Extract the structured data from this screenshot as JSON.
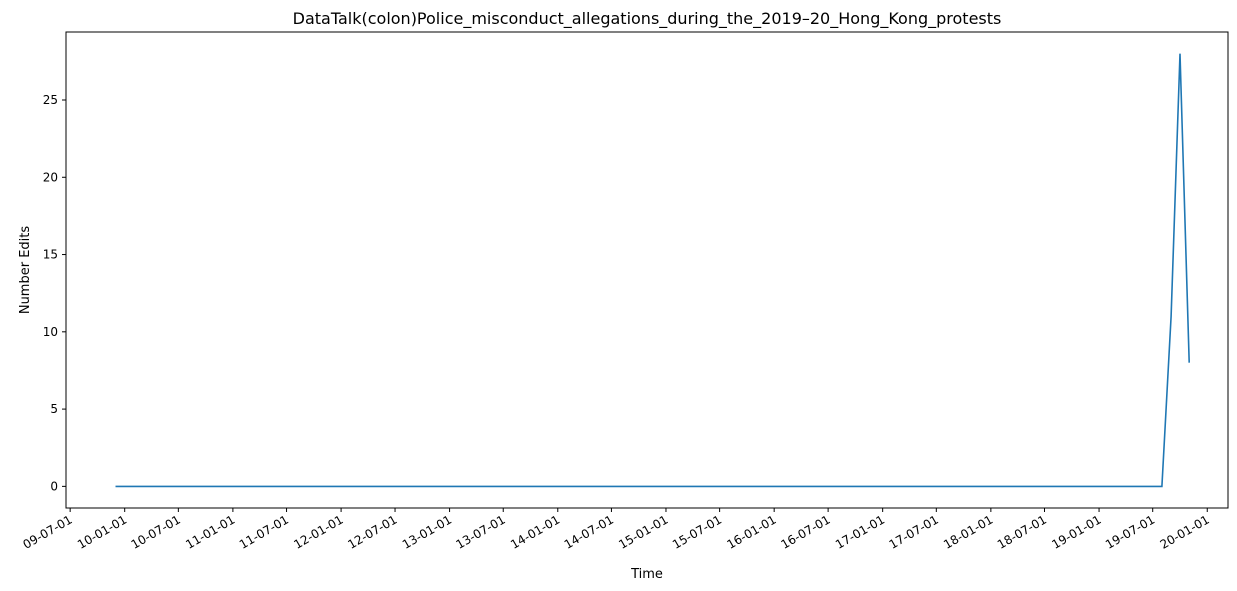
{
  "chart_data": {
    "type": "line",
    "title": "DataTalk(colon)Police_misconduct_allegations_during_the_2019–20_Hong_Kong_protests",
    "xlabel": "Time",
    "ylabel": "Number Edits",
    "ylim": [
      -1.4,
      29.4
    ],
    "yticks": [
      0,
      5,
      10,
      15,
      20,
      25
    ],
    "xlim": [
      "2009-06-17",
      "2020-03-11"
    ],
    "xticks": [
      {
        "date": "2009-07-01",
        "label": "09-07-01"
      },
      {
        "date": "2010-01-01",
        "label": "10-01-01"
      },
      {
        "date": "2010-07-01",
        "label": "10-07-01"
      },
      {
        "date": "2011-01-01",
        "label": "11-01-01"
      },
      {
        "date": "2011-07-01",
        "label": "11-07-01"
      },
      {
        "date": "2012-01-01",
        "label": "12-01-01"
      },
      {
        "date": "2012-07-01",
        "label": "12-07-01"
      },
      {
        "date": "2013-01-01",
        "label": "13-01-01"
      },
      {
        "date": "2013-07-01",
        "label": "13-07-01"
      },
      {
        "date": "2014-01-01",
        "label": "14-01-01"
      },
      {
        "date": "2014-07-01",
        "label": "14-07-01"
      },
      {
        "date": "2015-01-01",
        "label": "15-01-01"
      },
      {
        "date": "2015-07-01",
        "label": "15-07-01"
      },
      {
        "date": "2016-01-01",
        "label": "16-01-01"
      },
      {
        "date": "2016-07-01",
        "label": "16-07-01"
      },
      {
        "date": "2017-01-01",
        "label": "17-01-01"
      },
      {
        "date": "2017-07-01",
        "label": "17-07-01"
      },
      {
        "date": "2018-01-01",
        "label": "18-01-01"
      },
      {
        "date": "2018-07-01",
        "label": "18-07-01"
      },
      {
        "date": "2019-01-01",
        "label": "19-01-01"
      },
      {
        "date": "2019-07-01",
        "label": "19-07-01"
      },
      {
        "date": "2020-01-01",
        "label": "20-01-01"
      }
    ],
    "series": [
      {
        "color": "#1f77b4",
        "x": [
          "2009-12-01",
          "2019-08-01",
          "2019-09-01",
          "2019-10-01",
          "2019-11-01"
        ],
        "y": [
          0,
          0,
          11,
          28,
          8
        ]
      }
    ],
    "grid": false
  }
}
